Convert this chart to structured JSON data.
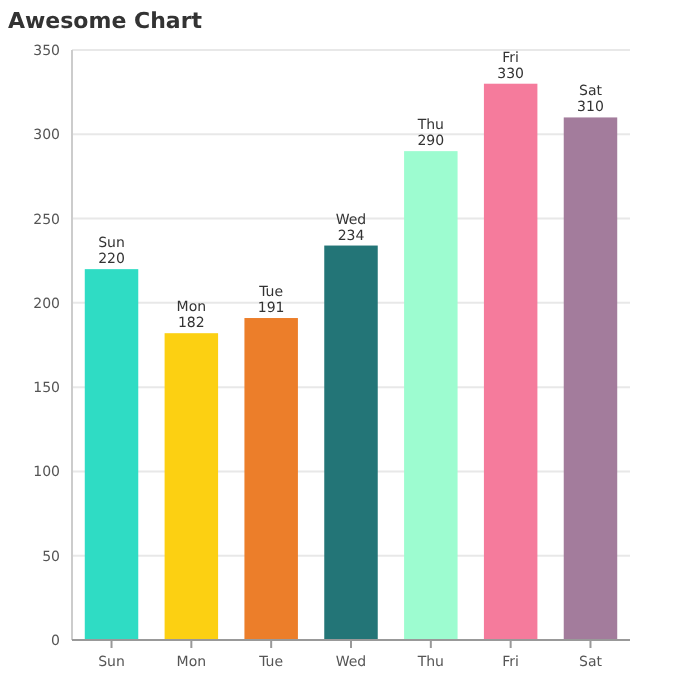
{
  "chart_data": {
    "type": "bar",
    "title": "Awesome Chart",
    "categories": [
      "Sun",
      "Mon",
      "Tue",
      "Wed",
      "Thu",
      "Fri",
      "Sat"
    ],
    "values": [
      220,
      182,
      191,
      234,
      290,
      330,
      310
    ],
    "colors": [
      "#2fdcc4",
      "#fcd012",
      "#ec7e2a",
      "#237577",
      "#9dfcd0",
      "#f57b9c",
      "#a37c9c"
    ],
    "ylim": [
      0,
      350
    ],
    "yticks": [
      0,
      50,
      100,
      150,
      200,
      250,
      300,
      350
    ],
    "grid": "y",
    "data_labels": true
  }
}
